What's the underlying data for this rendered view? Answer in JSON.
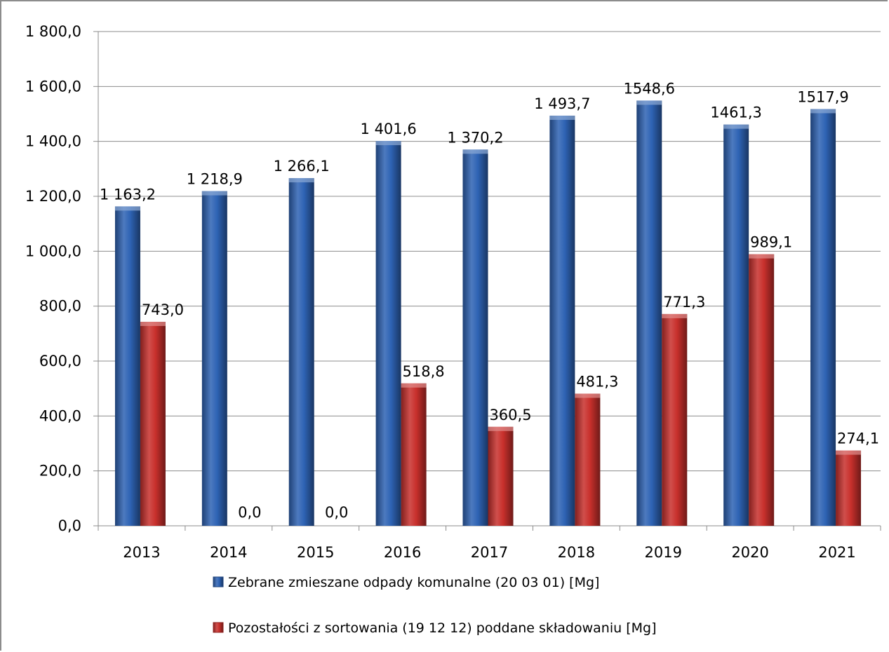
{
  "chart_data": {
    "type": "bar",
    "title": "",
    "xlabel": "",
    "ylabel": "",
    "categories": [
      "2013",
      "2014",
      "2015",
      "2016",
      "2017",
      "2018",
      "2019",
      "2020",
      "2021"
    ],
    "ylim": [
      0,
      1800
    ],
    "y_ticks": [
      0,
      200,
      400,
      600,
      800,
      1000,
      1200,
      1400,
      1600,
      1800
    ],
    "y_tick_labels": [
      "0,0",
      "200,0",
      "400,0",
      "600,0",
      "800,0",
      "1 000,0",
      "1 200,0",
      "1 400,0",
      "1 600,0",
      "1 800,0"
    ],
    "grid": true,
    "legend_position": "bottom",
    "series": [
      {
        "name": "Zebrane zmieszane odpady komunalne (20 03 01) [Mg]",
        "color": "#2e63b4",
        "values": [
          1163.2,
          1218.9,
          1266.1,
          1401.6,
          1370.2,
          1493.7,
          1548.6,
          1461.3,
          1517.9
        ],
        "labels": [
          "1 163,2",
          "1 218,9",
          "1 266,1",
          "1 401,6",
          "1 370,2",
          "1 493,7",
          "1548,6",
          "1461,3",
          "1517,9"
        ]
      },
      {
        "name": "Pozostałości z sortowania (19 12 12) poddane składowaniu [Mg]",
        "color": "#c8302c",
        "values": [
          743.0,
          0.0,
          0.0,
          518.8,
          360.5,
          481.3,
          771.3,
          989.1,
          274.1
        ],
        "labels": [
          "743,0",
          "0,0",
          "0,0",
          "518,8",
          "360,5",
          "481,3",
          "771,3",
          "989,1",
          "274,1"
        ]
      }
    ]
  }
}
